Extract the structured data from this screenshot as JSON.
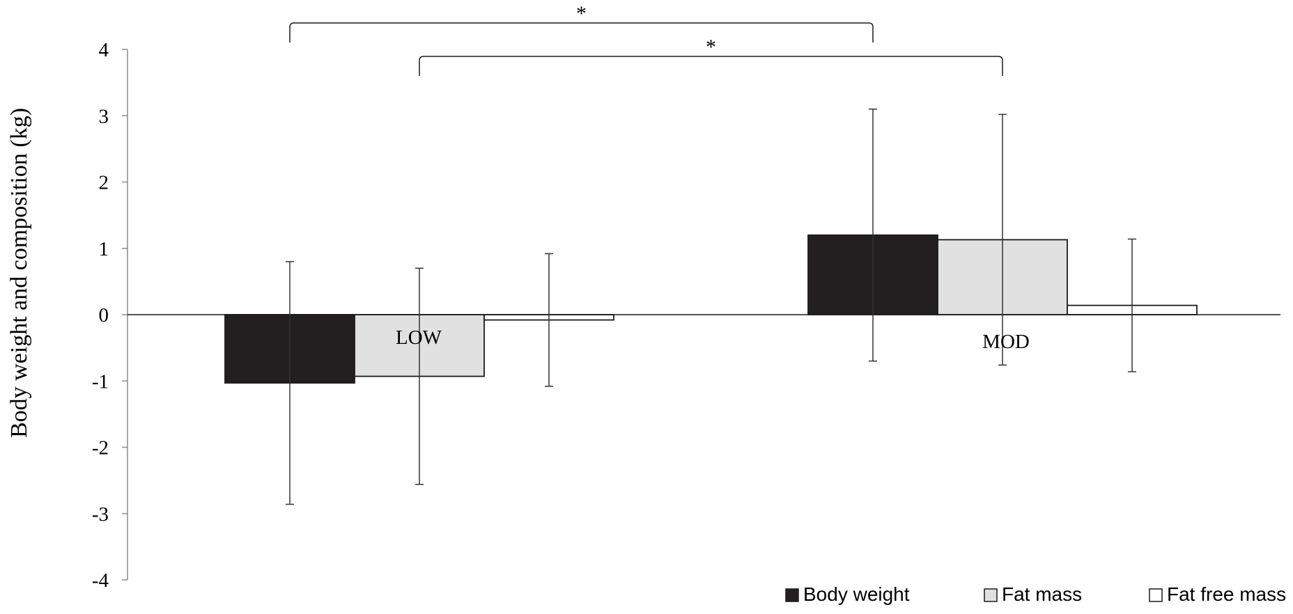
{
  "chart_data": {
    "type": "bar",
    "title": "",
    "xlabel": "",
    "ylabel": "Body weight and composition (kg)",
    "ylim": [
      -4,
      4
    ],
    "yticks": [
      4,
      3,
      2,
      1,
      0,
      -1,
      -2,
      -3,
      -4
    ],
    "ytick_labels": [
      "4",
      "3",
      "2",
      "1",
      "0",
      "-1",
      "-2",
      "-3",
      "-4"
    ],
    "categories": [
      "LOW",
      "MOD"
    ],
    "series": [
      {
        "name": "Body weight",
        "color": "#231f20",
        "values": [
          -1.03,
          1.2
        ],
        "errors": [
          1.83,
          1.9
        ]
      },
      {
        "name": "Fat mass",
        "color": "#e1e1e1",
        "values": [
          -0.93,
          1.13
        ],
        "errors": [
          1.63,
          1.89
        ]
      },
      {
        "name": "Fat free mass",
        "color": "#ffffff",
        "values": [
          -0.08,
          0.14
        ],
        "errors": [
          1.0,
          1.0
        ]
      }
    ],
    "error_bars": true,
    "grid": false,
    "legend": "bottom-right",
    "annotations": [
      {
        "text": "*",
        "from": {
          "category": "LOW",
          "series": "Body weight"
        },
        "to": {
          "category": "MOD",
          "series": "Body weight"
        }
      },
      {
        "text": "*",
        "from": {
          "category": "LOW",
          "series": "Fat mass"
        },
        "to": {
          "category": "MOD",
          "series": "Fat mass"
        }
      }
    ]
  }
}
